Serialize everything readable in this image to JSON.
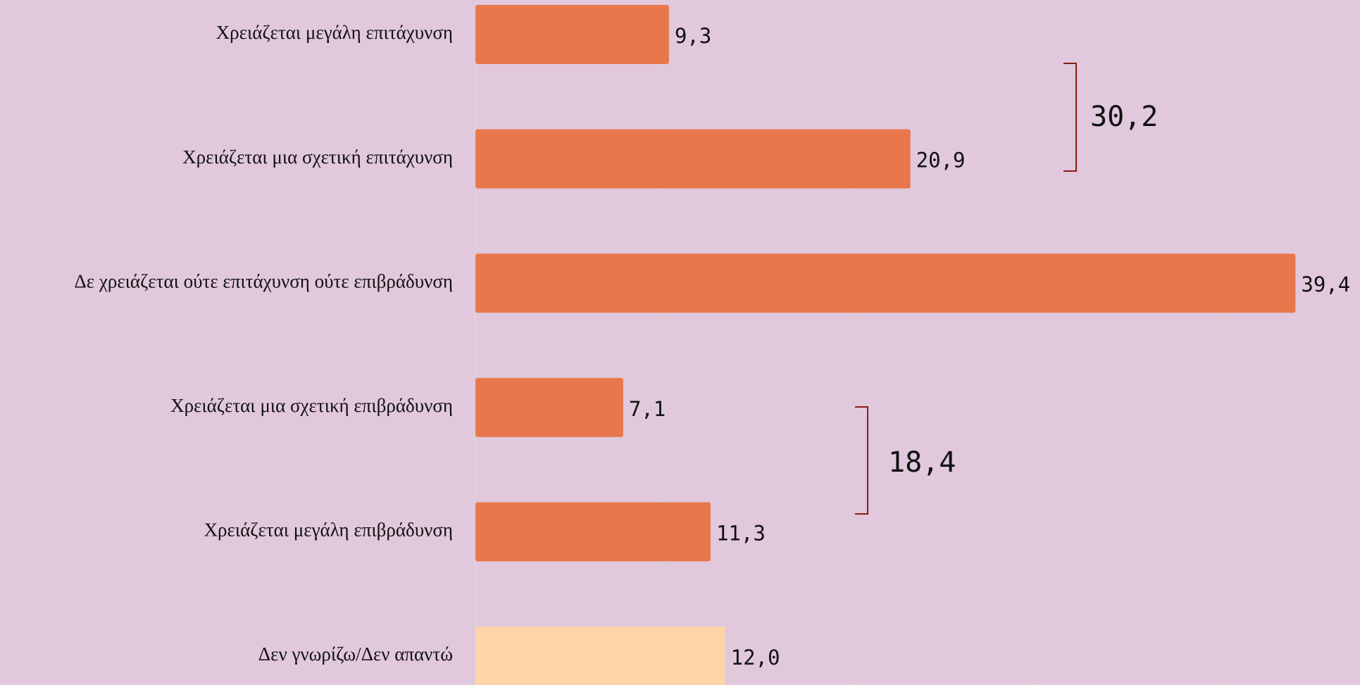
{
  "chart_data": {
    "type": "bar",
    "orientation": "horizontal",
    "categories": [
      "Χρειάζεται μεγάλη επιτάχυνση",
      "Χρειάζεται μια σχετική επιτάχυνση",
      "Δε χρειάζεται ούτε επιτάχυνση ούτε επιβράδυνση",
      "Χρειάζεται μια σχετική επιβράδυνση",
      "Χρειάζεται μεγάλη επιβράδυνση",
      "Δεν γνωρίζω/Δεν απαντώ"
    ],
    "values": [
      9.3,
      20.9,
      39.4,
      7.1,
      11.3,
      12.0
    ],
    "value_labels": [
      "9,3",
      "20,9",
      "39,4",
      "7,1",
      "11,3",
      "12,0"
    ],
    "colors": [
      "#e8784c",
      "#e8784c",
      "#e8784c",
      "#e8784c",
      "#e8784c",
      "#fdd5a8"
    ],
    "xlim": [
      0,
      42.5
    ],
    "xticks": [
      0,
      9,
      18,
      27,
      36
    ],
    "grid": true,
    "annotations": [
      "30,2",
      "18,4"
    ]
  }
}
